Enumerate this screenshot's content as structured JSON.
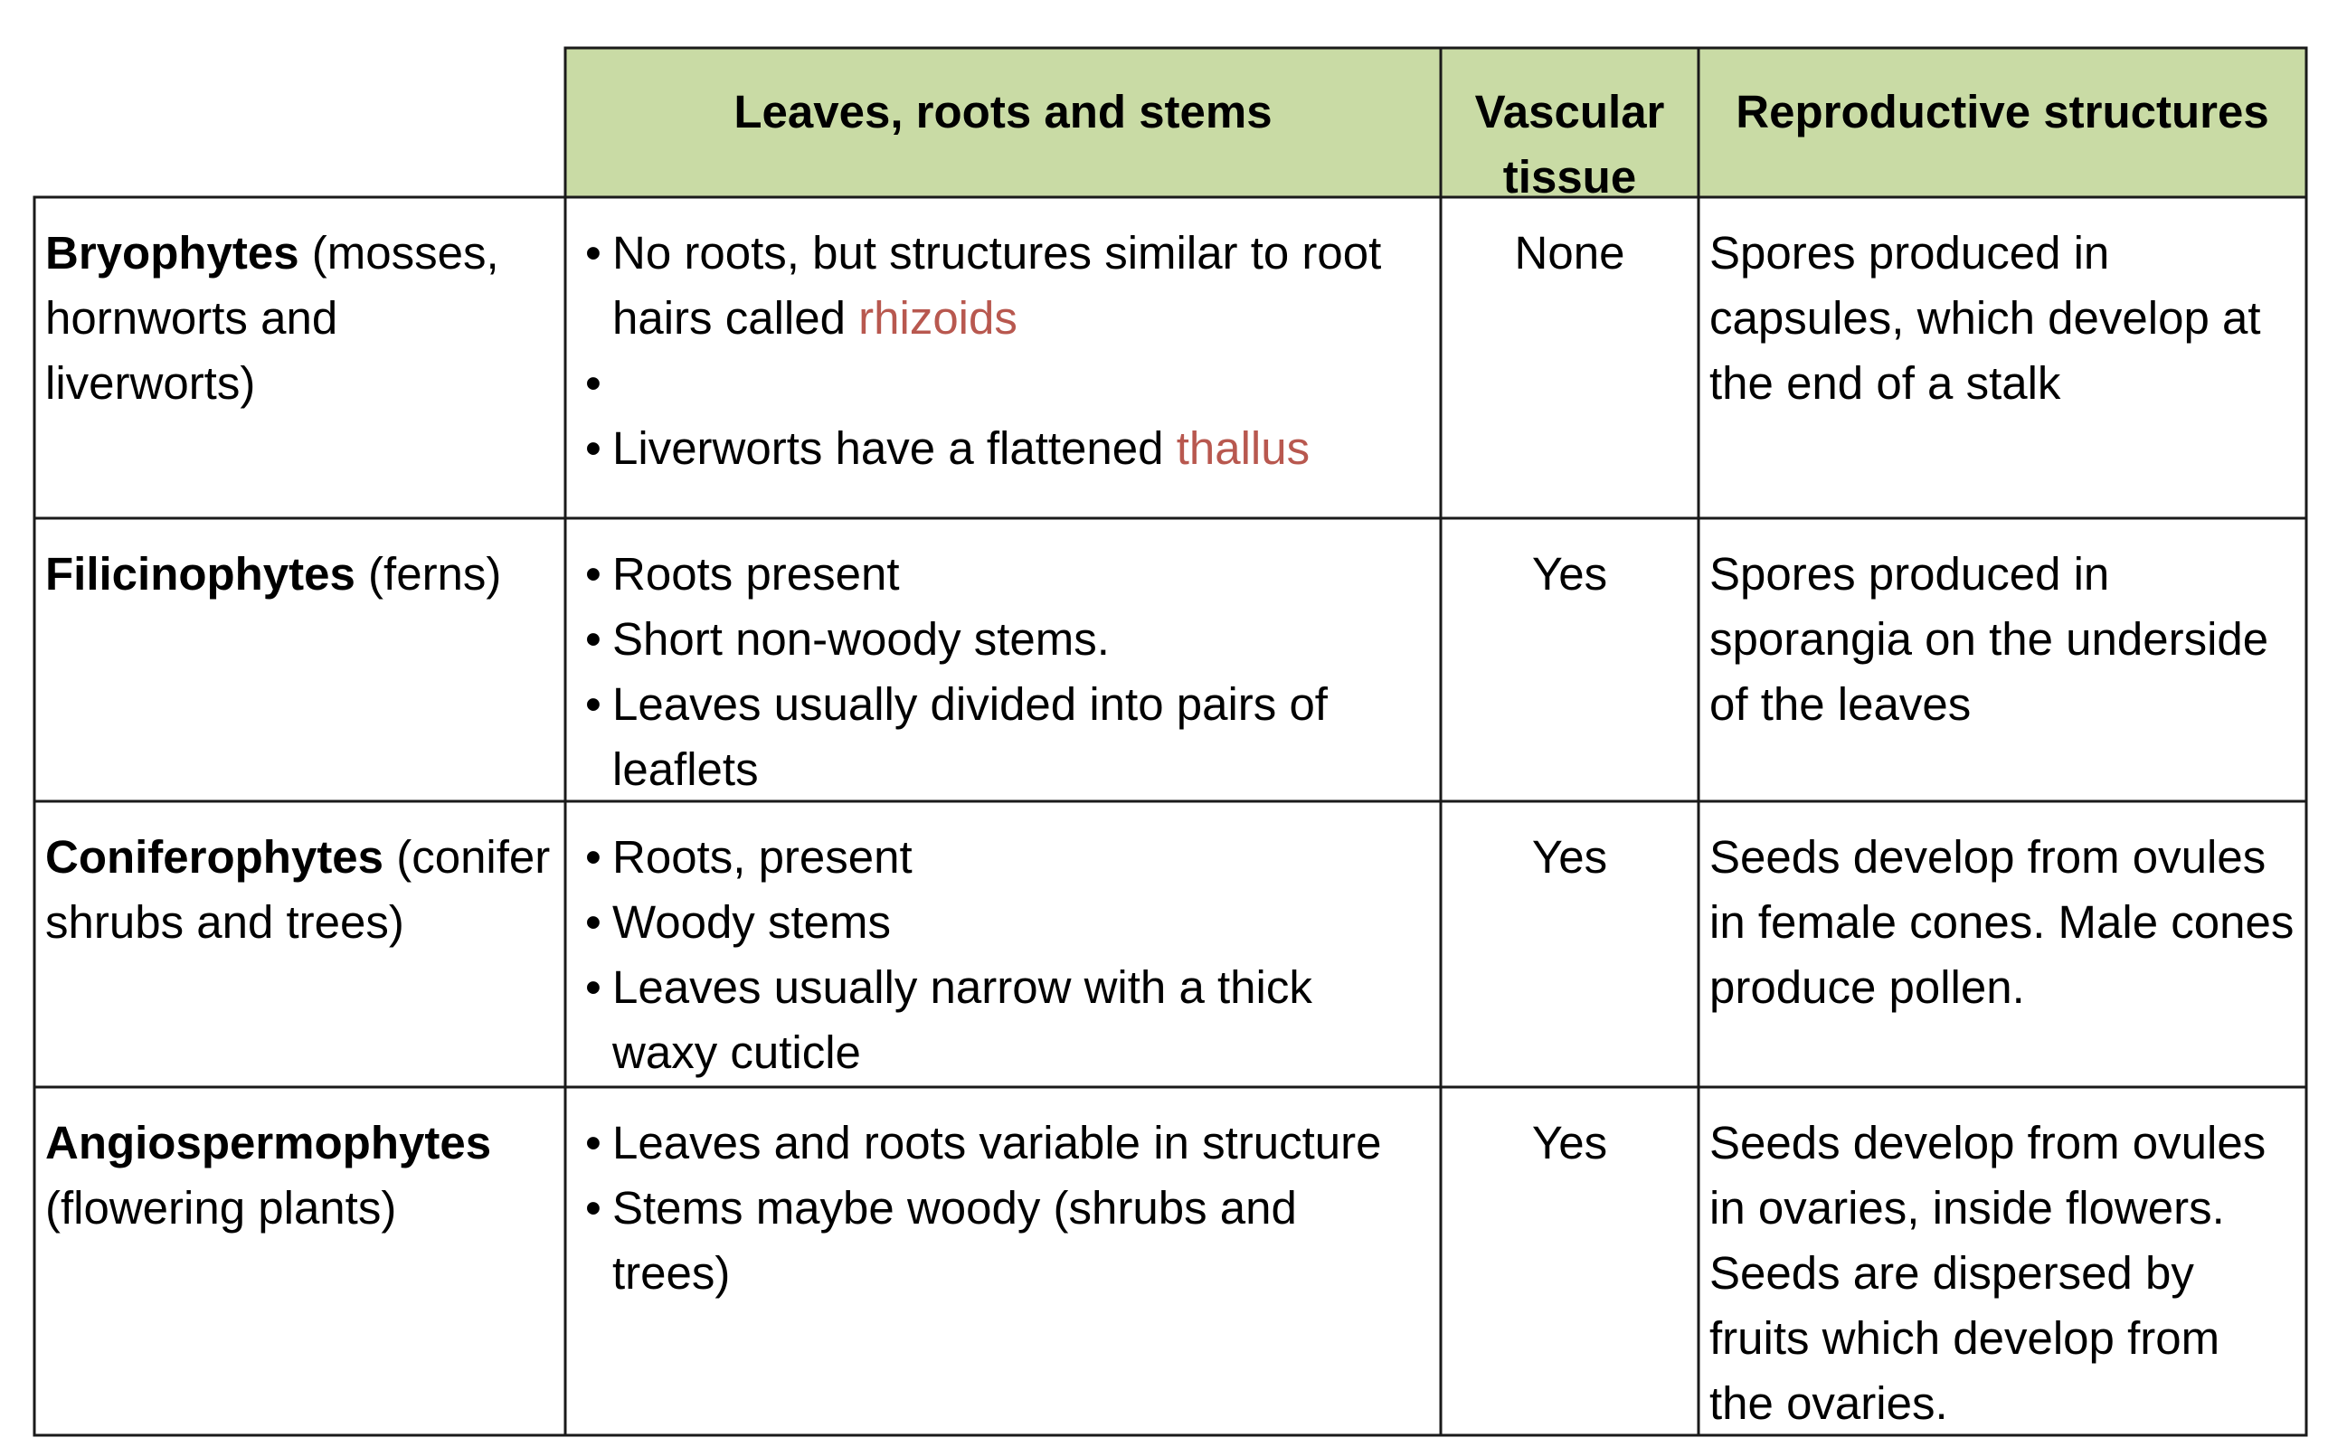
{
  "columns": [
    "Leaves, roots and stems",
    "Vascular tissue",
    "Reproductive structures"
  ],
  "term_color": "#b8584f",
  "header_bg": "#c9dba5",
  "rows": [
    {
      "group": "Bryophytes",
      "examples": " (mosses, hornworts and liverworts)",
      "bullets": [
        {
          "text": "No roots, but structures similar to root hairs called ",
          "term": "rhizoids"
        },
        {
          "text": "",
          "term": ""
        },
        {
          "text": "Liverworts have a flattened ",
          "term": "thallus"
        }
      ],
      "vascular": "None",
      "reproductive": "Spores produced in capsules, which develop at the end of a stalk"
    },
    {
      "group": "Filicinophytes",
      "examples": " (ferns)",
      "bullets": [
        {
          "text": "Roots present",
          "term": ""
        },
        {
          "text": "Short non-woody stems.",
          "term": ""
        },
        {
          "text": "Leaves usually divided into pairs of leaflets",
          "term": ""
        }
      ],
      "vascular": "Yes",
      "reproductive": "Spores produced in sporangia on the underside of the leaves"
    },
    {
      "group": "Coniferophytes",
      "examples": " (conifer shrubs and trees)",
      "bullets": [
        {
          "text": "Roots, present",
          "term": ""
        },
        {
          "text": "Woody stems",
          "term": ""
        },
        {
          "text": "Leaves usually narrow with a thick waxy cuticle",
          "term": ""
        }
      ],
      "vascular": "Yes",
      "reproductive": "Seeds develop from ovules in female cones. Male cones produce pollen."
    },
    {
      "group": "Angiospermophytes",
      "examples": " (flowering plants)",
      "bullets": [
        {
          "text": "Leaves and roots variable in structure",
          "term": ""
        },
        {
          "text": "Stems maybe woody (shrubs and trees)",
          "term": ""
        }
      ],
      "vascular": "Yes",
      "reproductive": "Seeds develop from ovules in ovaries, inside flowers. Seeds are dispersed by fruits which develop from the ovaries."
    }
  ]
}
